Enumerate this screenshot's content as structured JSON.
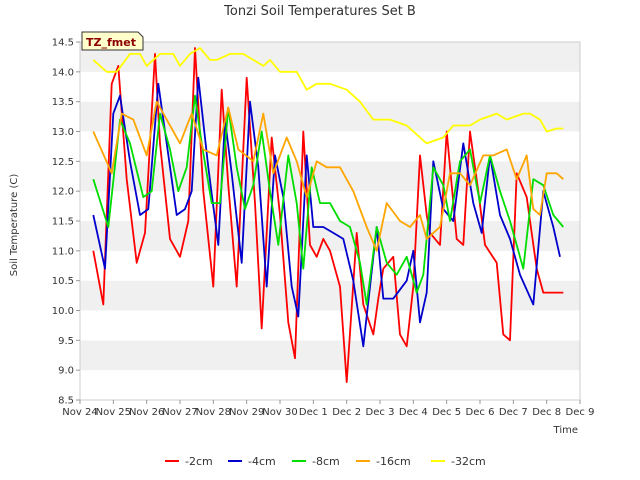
{
  "chart_data": {
    "type": "line",
    "title": "Tonzi Soil Temperatures Set B",
    "xlabel": "Time",
    "ylabel": "Soil Temperature (C)",
    "badge": "TZ_fmet",
    "ylim": [
      8.5,
      14.5
    ],
    "yticks": [
      "8.5",
      "9.0",
      "9.5",
      "10.0",
      "10.5",
      "11.0",
      "11.5",
      "12.0",
      "12.5",
      "13.0",
      "13.5",
      "14.0",
      "14.5"
    ],
    "xticks": [
      "Nov 24",
      "Nov 25",
      "Nov 26",
      "Nov 27",
      "Nov 28",
      "Nov 29",
      "Nov 30",
      "Dec 1",
      "Dec 2",
      "Dec 3",
      "Dec 4",
      "Dec 5",
      "Dec 6",
      "Dec 7",
      "Dec 8",
      "Dec 9"
    ],
    "xlim": [
      0,
      15
    ],
    "grid": "horizontal bands",
    "legend_position": "bottom",
    "series": [
      {
        "name": "-2cm",
        "color": "#ff0000",
        "x": [
          0.4,
          0.7,
          0.95,
          1.15,
          1.4,
          1.7,
          1.95,
          2.25,
          2.4,
          2.7,
          3.0,
          3.25,
          3.45,
          3.7,
          4.0,
          4.25,
          4.45,
          4.7,
          5.0,
          5.25,
          5.45,
          5.75,
          6.0,
          6.25,
          6.45,
          6.7,
          6.9,
          7.1,
          7.3,
          7.5,
          7.8,
          8.0,
          8.3,
          8.5,
          8.8,
          8.95,
          9.1,
          9.4,
          9.6,
          9.8,
          10.0,
          10.2,
          10.4,
          10.5,
          10.8,
          11.0,
          11.3,
          11.5,
          11.7,
          11.95,
          12.15,
          12.5,
          12.7,
          12.9,
          13.1,
          13.4,
          13.7,
          13.9,
          14.1,
          14.3,
          14.5
        ],
        "values": [
          11.0,
          10.1,
          13.8,
          14.1,
          12.2,
          10.8,
          11.3,
          14.3,
          12.8,
          11.2,
          10.9,
          11.5,
          14.4,
          12.0,
          10.4,
          13.7,
          12.1,
          10.4,
          13.9,
          11.8,
          9.7,
          12.9,
          11.6,
          9.8,
          9.2,
          13.0,
          11.1,
          10.9,
          11.2,
          11.0,
          10.4,
          8.8,
          11.3,
          10.1,
          9.6,
          10.2,
          10.7,
          10.9,
          9.6,
          9.4,
          10.4,
          12.6,
          11.6,
          11.3,
          11.1,
          13.0,
          11.2,
          11.1,
          13.0,
          12.0,
          11.1,
          10.8,
          9.6,
          9.5,
          12.3,
          11.9,
          10.7,
          10.3,
          10.3,
          10.3,
          10.3
        ]
      },
      {
        "name": "-4cm",
        "color": "#0000cc",
        "x": [
          0.4,
          0.75,
          1.0,
          1.2,
          1.5,
          1.8,
          2.05,
          2.35,
          2.6,
          2.9,
          3.15,
          3.35,
          3.55,
          3.85,
          4.15,
          4.35,
          4.55,
          4.85,
          5.1,
          5.35,
          5.6,
          5.85,
          6.1,
          6.35,
          6.55,
          6.8,
          7.0,
          7.3,
          7.6,
          7.9,
          8.2,
          8.5,
          8.9,
          9.1,
          9.4,
          9.8,
          10.0,
          10.2,
          10.4,
          10.6,
          10.9,
          11.2,
          11.5,
          11.8,
          12.05,
          12.3,
          12.6,
          12.9,
          13.2,
          13.6,
          13.9,
          14.2,
          14.4
        ],
        "values": [
          11.6,
          10.7,
          13.3,
          13.6,
          12.5,
          11.6,
          11.7,
          13.8,
          12.8,
          11.6,
          11.7,
          12.0,
          13.9,
          12.4,
          11.1,
          13.2,
          12.3,
          10.8,
          13.5,
          12.4,
          10.4,
          12.6,
          11.9,
          10.4,
          9.9,
          12.6,
          11.4,
          11.4,
          11.3,
          11.2,
          10.5,
          9.4,
          11.4,
          10.2,
          10.2,
          10.5,
          11.0,
          9.8,
          10.3,
          12.5,
          11.7,
          11.5,
          12.8,
          11.8,
          11.3,
          12.6,
          11.6,
          11.2,
          10.6,
          10.1,
          12.0,
          11.4,
          10.9
        ]
      },
      {
        "name": "-8cm",
        "color": "#00dd00",
        "x": [
          0.4,
          0.85,
          1.2,
          1.5,
          1.9,
          2.15,
          2.4,
          2.7,
          2.95,
          3.2,
          3.45,
          3.65,
          3.95,
          4.2,
          4.45,
          4.7,
          4.95,
          5.2,
          5.45,
          5.7,
          5.95,
          6.25,
          6.5,
          6.7,
          6.95,
          7.2,
          7.5,
          7.8,
          8.1,
          8.4,
          8.6,
          8.9,
          9.2,
          9.5,
          9.8,
          10.1,
          10.3,
          10.6,
          10.9,
          11.1,
          11.4,
          11.7,
          12.0,
          12.3,
          12.6,
          12.9,
          13.3,
          13.6,
          13.9,
          14.2,
          14.5
        ],
        "values": [
          12.2,
          11.4,
          13.2,
          12.8,
          11.9,
          12.0,
          13.3,
          12.7,
          12.0,
          12.4,
          13.6,
          12.8,
          11.8,
          11.8,
          13.4,
          12.4,
          11.7,
          12.1,
          13.0,
          12.0,
          11.1,
          12.6,
          11.8,
          10.7,
          12.4,
          11.8,
          11.8,
          11.5,
          11.4,
          10.8,
          10.1,
          11.4,
          10.8,
          10.6,
          10.9,
          10.3,
          10.6,
          12.4,
          12.1,
          11.5,
          12.5,
          12.7,
          11.8,
          12.6,
          12.0,
          11.5,
          10.7,
          12.2,
          12.1,
          11.6,
          11.4
        ]
      },
      {
        "name": "-16cm",
        "color": "#ffa500",
        "x": [
          0.4,
          0.95,
          1.25,
          1.6,
          2.0,
          2.3,
          2.7,
          3.0,
          3.35,
          3.7,
          4.1,
          4.45,
          4.75,
          5.2,
          5.5,
          5.8,
          6.2,
          6.5,
          6.8,
          7.1,
          7.4,
          7.8,
          8.2,
          8.6,
          8.9,
          9.2,
          9.6,
          9.9,
          10.2,
          10.4,
          10.6,
          10.8,
          11.1,
          11.4,
          11.7,
          12.1,
          12.4,
          12.8,
          13.1,
          13.4,
          13.6,
          13.8,
          14.0,
          14.3,
          14.5
        ],
        "values": [
          13.0,
          12.3,
          13.3,
          13.2,
          12.6,
          13.5,
          13.1,
          12.8,
          13.3,
          12.7,
          12.6,
          13.4,
          12.7,
          12.5,
          13.3,
          12.3,
          12.9,
          12.5,
          11.9,
          12.5,
          12.4,
          12.4,
          12.0,
          11.4,
          11.0,
          11.8,
          11.5,
          11.4,
          11.6,
          11.2,
          11.3,
          11.4,
          12.3,
          12.3,
          12.1,
          12.6,
          12.6,
          12.7,
          12.2,
          12.6,
          11.7,
          11.6,
          12.3,
          12.3,
          12.2
        ]
      },
      {
        "name": "-32cm",
        "color": "#ffff00",
        "x": [
          0.4,
          0.8,
          1.1,
          1.5,
          1.8,
          2.0,
          2.4,
          2.8,
          3.0,
          3.3,
          3.6,
          3.9,
          4.1,
          4.5,
          4.9,
          5.2,
          5.5,
          5.7,
          6.0,
          6.5,
          6.8,
          7.1,
          7.5,
          8.0,
          8.4,
          8.8,
          9.0,
          9.3,
          9.8,
          10.2,
          10.4,
          10.9,
          11.2,
          11.7,
          12.0,
          12.5,
          12.8,
          13.3,
          13.5,
          13.8,
          14.0,
          14.3,
          14.5
        ],
        "values": [
          14.2,
          14.0,
          14.0,
          14.3,
          14.3,
          14.1,
          14.3,
          14.3,
          14.1,
          14.3,
          14.4,
          14.2,
          14.2,
          14.3,
          14.3,
          14.2,
          14.1,
          14.2,
          14.0,
          14.0,
          13.7,
          13.8,
          13.8,
          13.7,
          13.5,
          13.2,
          13.2,
          13.2,
          13.1,
          12.9,
          12.8,
          12.9,
          13.1,
          13.1,
          13.2,
          13.3,
          13.2,
          13.3,
          13.3,
          13.2,
          13.0,
          13.05,
          13.05
        ]
      }
    ]
  }
}
